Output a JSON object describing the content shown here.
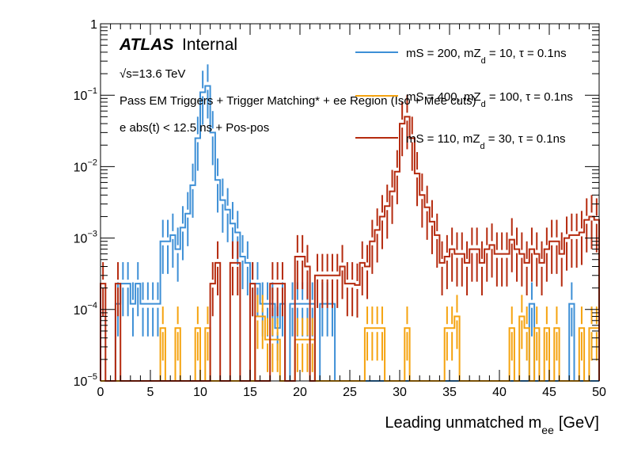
{
  "chart_data": {
    "type": "histogram-step",
    "title": "",
    "xlabel": "Leading unmatched m",
    "xlabel_sub": "ee",
    "xlabel_unit": "[GeV]",
    "ylabel": "",
    "xlim": [
      0,
      50
    ],
    "ylim": [
      1e-05,
      1
    ],
    "yscale": "log",
    "bin_width": 0.5,
    "x_tick_labels": [
      "0",
      "5",
      "10",
      "15",
      "20",
      "25",
      "30",
      "35",
      "40",
      "45",
      "50"
    ],
    "x_tick_values": [
      0,
      5,
      10,
      15,
      20,
      25,
      30,
      35,
      40,
      45,
      50
    ],
    "y_tick_labels": [
      {
        "base": "10",
        "exp": "−5",
        "value": 1e-05
      },
      {
        "base": "10",
        "exp": "−4",
        "value": 0.0001
      },
      {
        "base": "10",
        "exp": "−3",
        "value": 0.001
      },
      {
        "base": "10",
        "exp": "−2",
        "value": 0.01
      },
      {
        "base": "10",
        "exp": "−1",
        "value": 0.1
      },
      {
        "base": "1",
        "exp": "",
        "value": 1
      }
    ],
    "annotations": {
      "atlas": "ATLAS",
      "internal": "Internal",
      "energy": "√s=13.6 TeV",
      "selection1": "Pass EM Triggers + Trigger Matching* + ee Region (Iso + Mee cuts)",
      "selection2": "e abs(t) < 12.5 ns + Pos-pos"
    },
    "legend_position": "top-right",
    "series": [
      {
        "name": "mS = 200, mZ_d = 10, τ = 0.1ns",
        "legend_pre": "mS = 200, mZ",
        "legend_sub": "d",
        "legend_post": " = 10, τ = 0.1ns",
        "color": "#3d8fd6",
        "bins": [
          [
            1.5,
            0.00012
          ],
          [
            2.0,
            0.00023
          ],
          [
            2.5,
            0.00023
          ],
          [
            3.0,
            0.00012
          ],
          [
            3.5,
            0.00023
          ],
          [
            4.0,
            0.00012
          ],
          [
            4.5,
            0.00012
          ],
          [
            5.0,
            0.00012
          ],
          [
            5.5,
            0.00012
          ],
          [
            6.0,
            0.0009
          ],
          [
            6.5,
            0.0009
          ],
          [
            7.0,
            0.0011
          ],
          [
            7.5,
            0.0007
          ],
          [
            8.0,
            0.0014
          ],
          [
            8.5,
            0.0022
          ],
          [
            9.0,
            0.0055
          ],
          [
            9.5,
            0.025
          ],
          [
            10.0,
            0.11
          ],
          [
            10.5,
            0.135
          ],
          [
            11.0,
            0.03
          ],
          [
            11.5,
            0.0065
          ],
          [
            12.0,
            0.0034
          ],
          [
            12.5,
            0.0025
          ],
          [
            13.0,
            0.0016
          ],
          [
            13.5,
            0.0012
          ],
          [
            14.0,
            0.00055
          ],
          [
            14.5,
            0.00045
          ],
          [
            15.0,
            0.00023
          ],
          [
            15.5,
            0.00023
          ],
          [
            16.0,
            0.00012
          ],
          [
            16.5,
            0.00012
          ],
          [
            17.0,
            0.00012
          ],
          [
            17.5,
            5.5e-05
          ],
          [
            18.0,
            0.00012
          ],
          [
            19.0,
            0.00012
          ],
          [
            19.5,
            0.00012
          ],
          [
            20.0,
            0.00012
          ],
          [
            20.5,
            0.00012
          ],
          [
            21.0,
            0.00012
          ],
          [
            22.0,
            0.00012
          ],
          [
            22.5,
            0.00012
          ],
          [
            23.0,
            0.00012
          ],
          [
            43.0,
            0.00012
          ],
          [
            47.0,
            0.00012
          ]
        ]
      },
      {
        "name": "mS = 400, mZ_d = 100, τ = 0.1ns",
        "legend_pre": "mS = 400, mZ",
        "legend_sub": "d",
        "legend_post": " = 100, τ = 0.1ns",
        "color": "#f5a30f",
        "bins": [
          [
            6.0,
            5.5e-05
          ],
          [
            7.5,
            5.5e-05
          ],
          [
            9.5,
            5.5e-05
          ],
          [
            10.5,
            5.5e-05
          ],
          [
            15.5,
            8e-05
          ],
          [
            16.0,
            8e-05
          ],
          [
            16.5,
            3.8e-05
          ],
          [
            17.0,
            3.8e-05
          ],
          [
            17.5,
            3.8e-05
          ],
          [
            19.5,
            3.8e-05
          ],
          [
            20.0,
            3.8e-05
          ],
          [
            20.5,
            3.8e-05
          ],
          [
            21.0,
            3.8e-05
          ],
          [
            26.5,
            5.5e-05
          ],
          [
            27.0,
            5.5e-05
          ],
          [
            27.5,
            5.5e-05
          ],
          [
            28.0,
            5.5e-05
          ],
          [
            30.5,
            5.5e-05
          ],
          [
            34.5,
            5.5e-05
          ],
          [
            35.0,
            5.5e-05
          ],
          [
            35.5,
            8e-05
          ],
          [
            41.0,
            5.5e-05
          ],
          [
            42.0,
            8e-05
          ],
          [
            42.5,
            5.5e-05
          ],
          [
            43.5,
            5.5e-05
          ],
          [
            44.5,
            5.5e-05
          ],
          [
            45.5,
            5.5e-05
          ],
          [
            48.0,
            5.5e-05
          ],
          [
            49.0,
            5.5e-05
          ],
          [
            49.5,
            5.5e-05
          ]
        ]
      },
      {
        "name": "mS = 110, mZ_d = 30, τ = 0.1ns",
        "legend_pre": "mS = 110, mZ",
        "legend_sub": "d",
        "legend_post": " = 30, τ = 0.1ns",
        "color": "#b52a0e",
        "bins": [
          [
            0.0,
            0.00023
          ],
          [
            1.5,
            0.00023
          ],
          [
            11.0,
            0.00023
          ],
          [
            11.5,
            0.00045
          ],
          [
            13.0,
            0.00045
          ],
          [
            13.5,
            0.00045
          ],
          [
            15.0,
            0.00023
          ],
          [
            17.0,
            0.00023
          ],
          [
            17.5,
            0.00023
          ],
          [
            18.0,
            0.00023
          ],
          [
            19.5,
            0.00055
          ],
          [
            20.0,
            0.00055
          ],
          [
            20.5,
            0.0004
          ],
          [
            21.5,
            0.0003
          ],
          [
            22.0,
            0.0003
          ],
          [
            22.5,
            0.0003
          ],
          [
            23.0,
            0.0003
          ],
          [
            23.5,
            0.0003
          ],
          [
            24.0,
            0.0004
          ],
          [
            24.5,
            0.00023
          ],
          [
            25.0,
            0.00023
          ],
          [
            25.5,
            0.00022
          ],
          [
            26.0,
            0.00045
          ],
          [
            26.5,
            0.0004
          ],
          [
            27.0,
            0.0009
          ],
          [
            27.5,
            0.0013
          ],
          [
            28.0,
            0.002
          ],
          [
            28.5,
            0.0028
          ],
          [
            29.0,
            0.0045
          ],
          [
            29.5,
            0.0085
          ],
          [
            30.0,
            0.04
          ],
          [
            30.5,
            0.05
          ],
          [
            31.0,
            0.025
          ],
          [
            31.5,
            0.008
          ],
          [
            32.0,
            0.004
          ],
          [
            32.5,
            0.0027
          ],
          [
            33.0,
            0.0017
          ],
          [
            33.5,
            0.0011
          ],
          [
            34.0,
            0.00045
          ],
          [
            34.5,
            0.00055
          ],
          [
            35.0,
            0.0007
          ],
          [
            35.5,
            0.0006
          ],
          [
            36.0,
            0.0006
          ],
          [
            36.5,
            0.00045
          ],
          [
            37.0,
            0.0007
          ],
          [
            37.5,
            0.0007
          ],
          [
            38.0,
            0.00045
          ],
          [
            38.5,
            0.0007
          ],
          [
            39.0,
            0.0008
          ],
          [
            39.5,
            0.0006
          ],
          [
            40.0,
            0.0006
          ],
          [
            40.5,
            0.0006
          ],
          [
            41.0,
            0.00095
          ],
          [
            41.5,
            0.0007
          ],
          [
            42.0,
            0.0006
          ],
          [
            42.5,
            0.00045
          ],
          [
            43.0,
            0.0007
          ],
          [
            43.5,
            0.0006
          ],
          [
            44.0,
            0.00045
          ],
          [
            44.5,
            0.0007
          ],
          [
            45.0,
            0.0009
          ],
          [
            45.5,
            0.0009
          ],
          [
            46.0,
            0.0006
          ],
          [
            46.5,
            0.001
          ],
          [
            47.0,
            0.0011
          ],
          [
            47.5,
            0.0011
          ],
          [
            48.0,
            0.0012
          ],
          [
            48.5,
            0.0018
          ],
          [
            49.0,
            0.002
          ],
          [
            49.5,
            0.0018
          ]
        ]
      }
    ]
  }
}
